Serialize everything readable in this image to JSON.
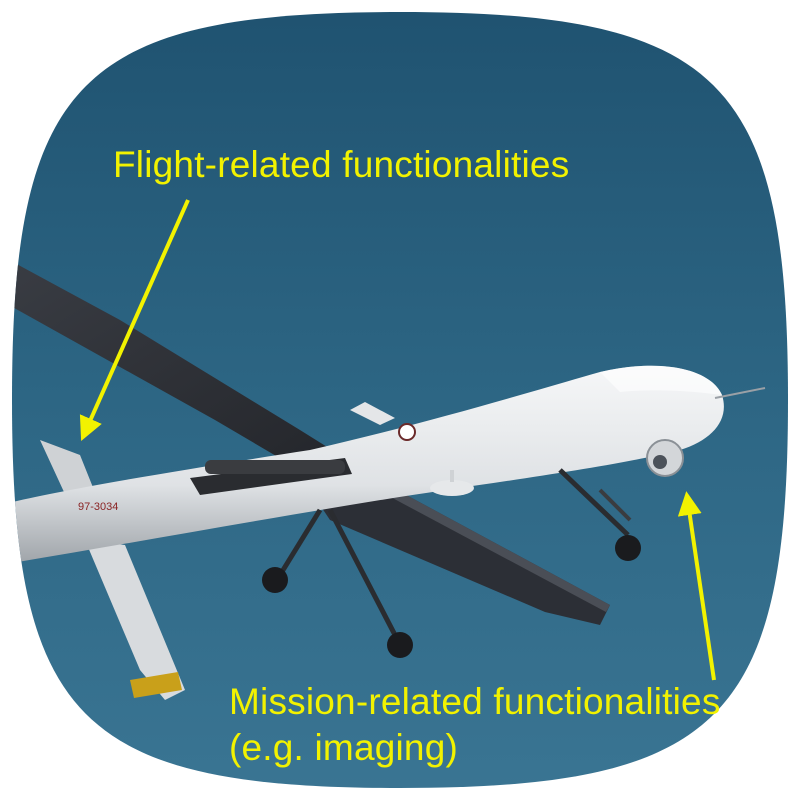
{
  "annotations": {
    "flight_label": "Flight-related functionalities",
    "mission_label_line1": "Mission-related functionalities",
    "mission_label_line2": "(e.g. imaging)"
  },
  "aircraft": {
    "tail_marking": "97-3034"
  },
  "colors": {
    "sky": "#2e6785",
    "sky_dark": "#1d4e6a",
    "annotation": "#f2f200",
    "fuselage": "#e8eaec",
    "wing_dark": "#2b2d33"
  },
  "icons": {
    "flight_arrow": "arrow-down-left-icon",
    "mission_arrow": "arrow-up-icon"
  }
}
